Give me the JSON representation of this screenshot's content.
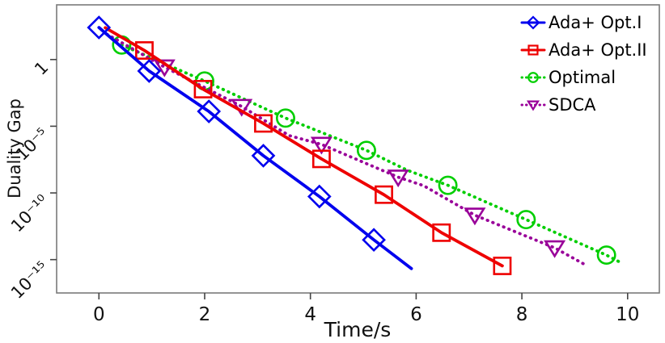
{
  "figure": {
    "background": "#ffffff",
    "frame_color": "#7a7a7a",
    "tick_color": "#444444",
    "text_color": "#111111"
  },
  "chart_data": {
    "type": "line",
    "title": "",
    "xlabel": "Time/s",
    "ylabel": "Duality Gap",
    "x_axis": {
      "min": -0.8,
      "max": 10.6,
      "ticks": [
        0,
        2,
        4,
        6,
        8,
        10
      ]
    },
    "y_axis": {
      "scale": "log10",
      "min_exp": -17.5,
      "max_exp": 4.1,
      "ticks": [
        {
          "exp": 0,
          "label": "1"
        },
        {
          "exp": -5,
          "label": "10⁻⁵"
        },
        {
          "exp": -10,
          "label": "10⁻¹⁰"
        },
        {
          "exp": -15,
          "label": "10⁻¹⁵"
        }
      ]
    },
    "grid": false,
    "legend_position": "top-right",
    "note": "points are [time_s, log10(duality_gap)]",
    "series": [
      {
        "name": "Optimal",
        "color": "#00CE00",
        "line_style": "dotted",
        "marker": "circle",
        "points": [
          [
            0.43,
            1.09
          ],
          [
            2.0,
            -1.61
          ],
          [
            3.53,
            -4.39
          ],
          [
            5.06,
            -6.81
          ],
          [
            5.83,
            -8.3
          ],
          [
            6.6,
            -9.43
          ],
          [
            8.08,
            -12.0
          ],
          [
            9.6,
            -14.66
          ],
          [
            9.86,
            -15.2
          ]
        ],
        "marker_points": [
          [
            0.43,
            1.09
          ],
          [
            2.0,
            -1.61
          ],
          [
            3.53,
            -4.39
          ],
          [
            5.06,
            -6.81
          ],
          [
            6.6,
            -9.43
          ],
          [
            8.08,
            -12.0
          ],
          [
            9.6,
            -14.66
          ]
        ]
      },
      {
        "name": "SDCA",
        "color": "#990099",
        "line_style": "dotted",
        "marker": "triangle-down",
        "points": [
          [
            0.15,
            1.9
          ],
          [
            1.24,
            -0.56
          ],
          [
            2.7,
            -3.52
          ],
          [
            3.6,
            -5.7
          ],
          [
            4.21,
            -6.36
          ],
          [
            5.66,
            -8.82
          ],
          [
            6.14,
            -9.45
          ],
          [
            7.11,
            -11.67
          ],
          [
            8.62,
            -14.12
          ],
          [
            9.19,
            -15.37
          ]
        ],
        "marker_points": [
          [
            1.24,
            -0.56
          ],
          [
            2.7,
            -3.52
          ],
          [
            4.21,
            -6.36
          ],
          [
            5.66,
            -8.82
          ],
          [
            7.11,
            -11.67
          ],
          [
            8.62,
            -14.12
          ]
        ]
      },
      {
        "name": "Ada+ Opt.II",
        "color": "#EE0000",
        "line_style": "solid",
        "marker": "square",
        "points": [
          [
            0.12,
            2.38
          ],
          [
            0.86,
            0.68
          ],
          [
            1.97,
            -2.22
          ],
          [
            3.11,
            -4.79
          ],
          [
            4.21,
            -7.45
          ],
          [
            5.39,
            -10.13
          ],
          [
            6.48,
            -12.98
          ],
          [
            7.63,
            -15.47
          ]
        ],
        "marker_points": [
          [
            0.86,
            0.68
          ],
          [
            1.97,
            -2.22
          ],
          [
            3.11,
            -4.79
          ],
          [
            4.21,
            -7.45
          ],
          [
            5.39,
            -10.13
          ],
          [
            6.48,
            -12.98
          ],
          [
            7.63,
            -15.47
          ]
        ]
      },
      {
        "name": "Ada+ Opt.I",
        "color": "#0000EE",
        "line_style": "solid",
        "marker": "diamond",
        "points": [
          [
            0.0,
            2.4
          ],
          [
            0.95,
            -0.86
          ],
          [
            2.08,
            -3.89
          ],
          [
            3.11,
            -7.21
          ],
          [
            4.17,
            -10.27
          ],
          [
            5.2,
            -13.52
          ],
          [
            5.91,
            -15.67
          ]
        ],
        "marker_points": [
          [
            0.0,
            2.4
          ],
          [
            0.95,
            -0.86
          ],
          [
            2.08,
            -3.89
          ],
          [
            3.11,
            -7.21
          ],
          [
            4.17,
            -10.27
          ],
          [
            5.2,
            -13.52
          ]
        ]
      }
    ],
    "legend_order": [
      "Ada+ Opt.I",
      "Ada+ Opt.II",
      "Optimal",
      "SDCA"
    ]
  }
}
